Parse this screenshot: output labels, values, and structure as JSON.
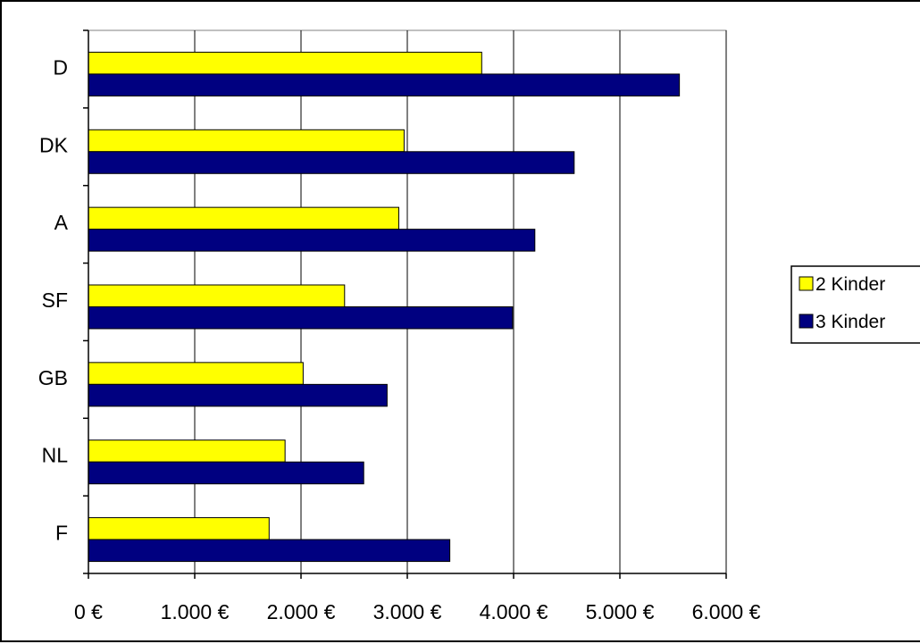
{
  "chart_data": {
    "type": "bar",
    "orientation": "horizontal",
    "title": "",
    "xlabel": "",
    "ylabel": "",
    "categories": [
      "D",
      "DK",
      "A",
      "SF",
      "GB",
      "NL",
      "F"
    ],
    "series": [
      {
        "name": "2 Kinder",
        "color": "#ffff00",
        "values": [
          3700,
          2970,
          2920,
          2410,
          2020,
          1850,
          1700
        ]
      },
      {
        "name": "3 Kinder",
        "color": "#000080",
        "values": [
          5560,
          4570,
          4200,
          3990,
          2810,
          2590,
          3400
        ]
      }
    ],
    "xlim": [
      0,
      6000
    ],
    "x_ticks": [
      0,
      1000,
      2000,
      3000,
      4000,
      5000,
      6000
    ],
    "x_tick_labels": [
      "0 €",
      "1.000 €",
      "2.000 €",
      "3.000 €",
      "4.000 €",
      "5.000 €",
      "6.000 €"
    ],
    "grid": "vertical",
    "legend_position": "right"
  }
}
